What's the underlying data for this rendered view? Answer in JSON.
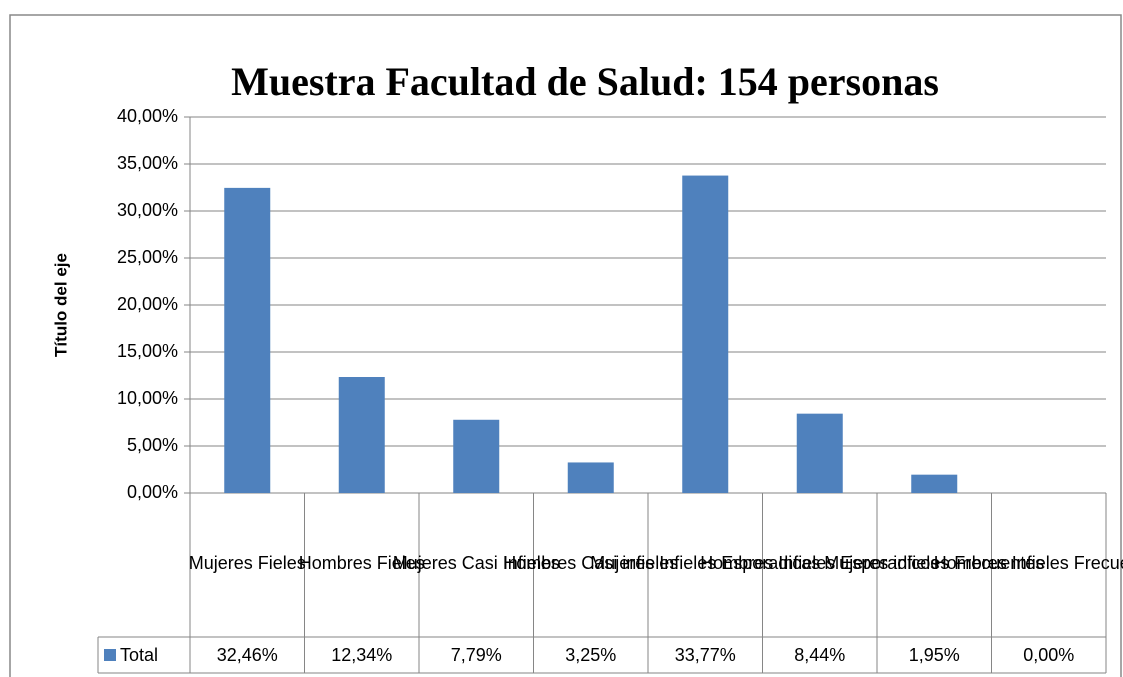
{
  "chart_data": {
    "type": "bar",
    "title": "Muestra Facultad de Salud: 154 personas",
    "y_label": "Título del eje",
    "categories": [
      "Mujeres Fieles",
      "Hombres Fieles",
      "Mujeres Casi Infieles",
      "Hombres Casi infieles",
      "Mujeres Infieles Esporadicas",
      "Hombres Infieles Esporadicos",
      "Mujeres infieles Frecuentes",
      "Hombres Infieles Frecuentes"
    ],
    "series": [
      {
        "name": "Total",
        "color": "#4f81bd",
        "values": [
          32.46,
          12.34,
          7.79,
          3.25,
          33.77,
          8.44,
          1.95,
          0
        ],
        "value_labels": [
          "32,46%",
          "12,34%",
          "7,79%",
          "3,25%",
          "33,77%",
          "8,44%",
          "1,95%",
          "0,00%"
        ]
      }
    ],
    "ylim": [
      0,
      40
    ],
    "yticks": [
      {
        "value": 0,
        "label": "0,00%"
      },
      {
        "value": 5,
        "label": "5,00%"
      },
      {
        "value": 10,
        "label": "10,00%"
      },
      {
        "value": 15,
        "label": "15,00%"
      },
      {
        "value": 20,
        "label": "20,00%"
      },
      {
        "value": 25,
        "label": "25,00%"
      },
      {
        "value": 30,
        "label": "30,00%"
      },
      {
        "value": 35,
        "label": "35,00%"
      },
      {
        "value": 40,
        "label": "40,00%"
      }
    ],
    "grid": true
  }
}
